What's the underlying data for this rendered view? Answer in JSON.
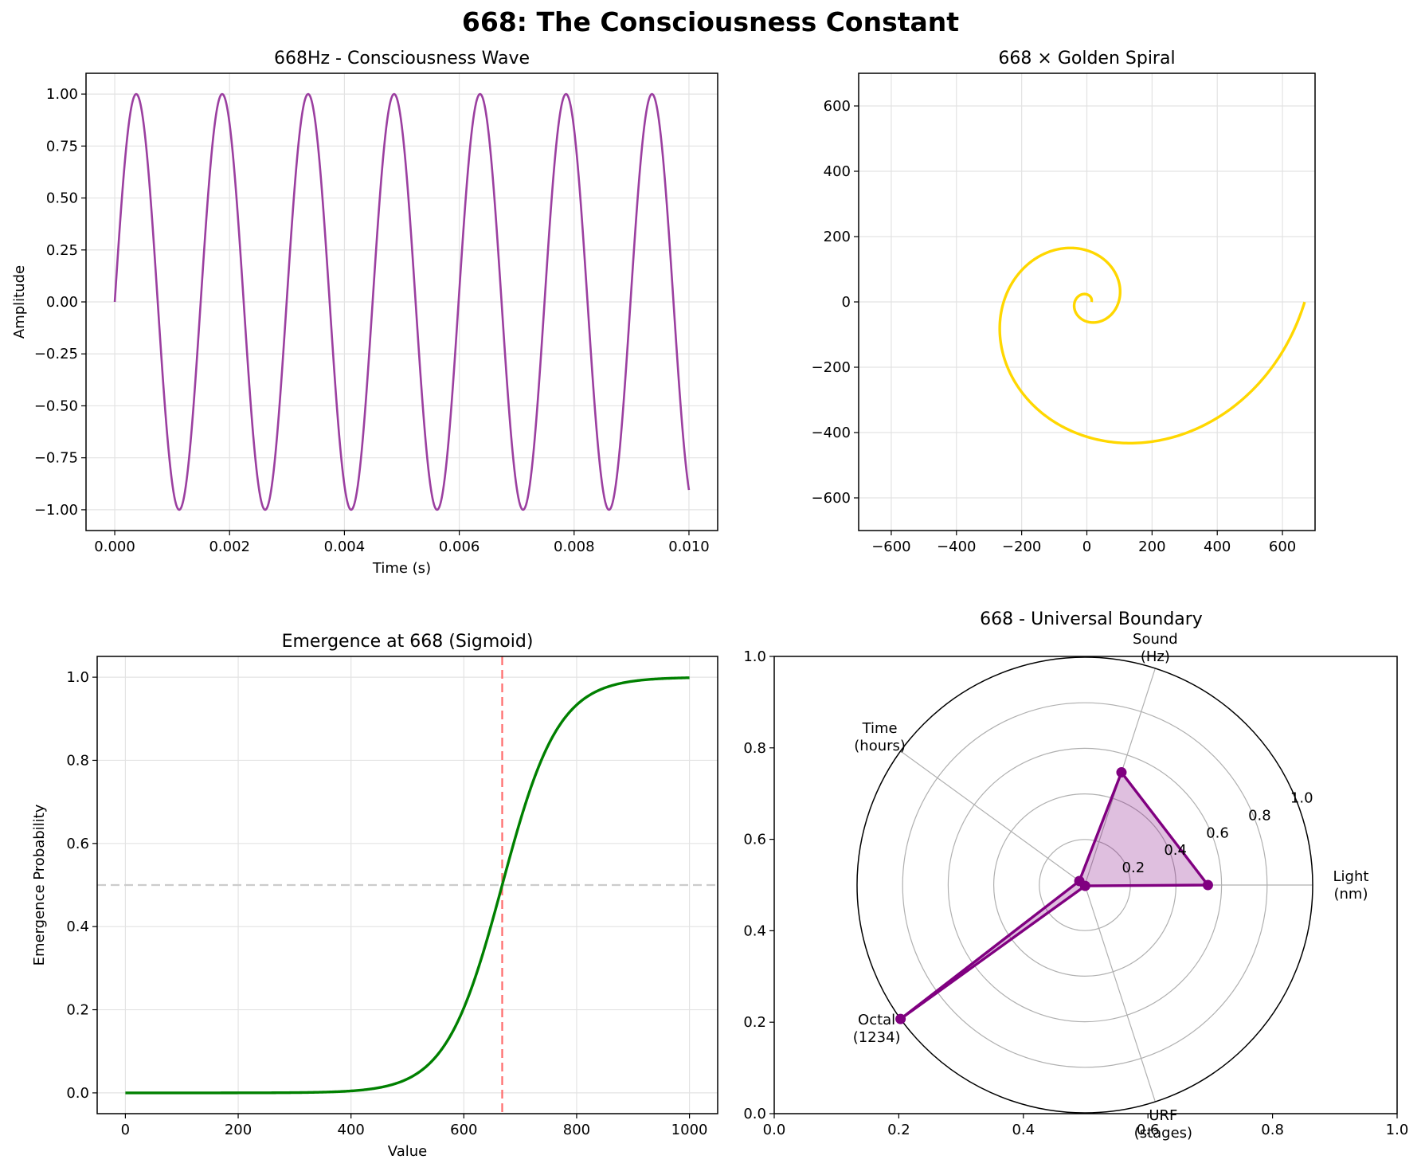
{
  "figure": {
    "suptitle": "668: The Consciousness Constant"
  },
  "chart_data": [
    {
      "id": "wave",
      "type": "line",
      "title": "668Hz - Consciousness Wave",
      "xlabel": "Time (s)",
      "ylabel": "Amplitude",
      "function": "sin(2*pi*668*t)",
      "frequency_hz": 668,
      "x_range": [
        0,
        0.01
      ],
      "y_range": [
        -1,
        1
      ],
      "xlim": [
        -0.0005,
        0.0105
      ],
      "ylim": [
        -1.1,
        1.1
      ],
      "xticks": [
        0.0,
        0.002,
        0.004,
        0.006,
        0.008,
        0.01
      ],
      "xticklabels": [
        "0.000",
        "0.002",
        "0.004",
        "0.006",
        "0.008",
        "0.010"
      ],
      "yticks": [
        1.0,
        0.75,
        0.5,
        0.25,
        0.0,
        -0.25,
        -0.5,
        -0.75,
        -1.0
      ],
      "yticklabels": [
        "1.00",
        "0.75",
        "0.50",
        "0.25",
        "0.00",
        "−0.25",
        "−0.50",
        "−0.75",
        "−1.00"
      ],
      "grid": true,
      "color": "#9b3fa0"
    },
    {
      "id": "spiral",
      "type": "line",
      "title": "668 × Golden Spiral",
      "xlabel": "",
      "ylabel": "",
      "function": "r = 668 * phi^(2*theta/pi - 4), theta in [0, 4*pi]",
      "theta_range": [
        0,
        12.566
      ],
      "r_end": 668,
      "xlim": [
        -700,
        700
      ],
      "ylim": [
        -700,
        700
      ],
      "xticks": [
        -600,
        -400,
        -200,
        0,
        200,
        400,
        600
      ],
      "xticklabels": [
        "−600",
        "−400",
        "−200",
        "0",
        "200",
        "400",
        "600"
      ],
      "yticks": [
        600,
        400,
        200,
        0,
        -200,
        -400,
        -600
      ],
      "yticklabels": [
        "600",
        "400",
        "200",
        "0",
        "−200",
        "−400",
        "−600"
      ],
      "grid": true,
      "color": "#ffd700"
    },
    {
      "id": "sigmoid",
      "type": "line",
      "title": "Emergence at 668 (Sigmoid)",
      "xlabel": "Value",
      "ylabel": "Emergence Probability",
      "function": "1/(1+exp(-(x-668)/50))",
      "center": 668,
      "scale": 50,
      "x_range": [
        0,
        1000
      ],
      "xlim": [
        -50,
        1050
      ],
      "ylim": [
        -0.05,
        1.05
      ],
      "xticks": [
        0,
        200,
        400,
        600,
        800,
        1000
      ],
      "xticklabels": [
        "0",
        "200",
        "400",
        "600",
        "800",
        "1000"
      ],
      "yticks": [
        0.0,
        0.2,
        0.4,
        0.6,
        0.8,
        1.0
      ],
      "yticklabels": [
        "0.0",
        "0.2",
        "0.4",
        "0.6",
        "0.8",
        "1.0"
      ],
      "reference_lines": {
        "vertical_x": 668,
        "horizontal_y": 0.5
      },
      "grid": true,
      "color": "#008000",
      "ref_color_vertical": "#ff6b6b",
      "ref_color_horizontal": "#cccccc"
    },
    {
      "id": "radar",
      "type": "radar",
      "title": "668 - Universal Boundary",
      "categories": [
        "Light\n(nm)",
        "Sound\n(Hz)",
        "Time\n(hours)",
        "Octal\n(1234)",
        "URF\n(stages)"
      ],
      "angles_deg": [
        0,
        72,
        144,
        216,
        288
      ],
      "values": [
        0.54,
        0.52,
        0.03,
        1.0,
        0.004
      ],
      "closed_polygon": true,
      "rlim": [
        0,
        1
      ],
      "rticks": [
        0.2,
        0.4,
        0.6,
        0.8,
        1.0
      ],
      "rticklabels": [
        "0.2",
        "0.4",
        "0.6",
        "0.8",
        "1.0"
      ],
      "frame_xticks": [
        0.0,
        0.2,
        0.4,
        0.6,
        0.8,
        1.0
      ],
      "frame_xticklabels": [
        "0.0",
        "0.2",
        "0.4",
        "0.6",
        "0.8",
        "1.0"
      ],
      "frame_yticks": [
        0.0,
        0.2,
        0.4,
        0.6,
        0.8,
        1.0
      ],
      "frame_yticklabels": [
        "0.0",
        "0.2",
        "0.4",
        "0.6",
        "0.8",
        "1.0"
      ],
      "color": "#800080",
      "fill_color": "#800080"
    }
  ]
}
